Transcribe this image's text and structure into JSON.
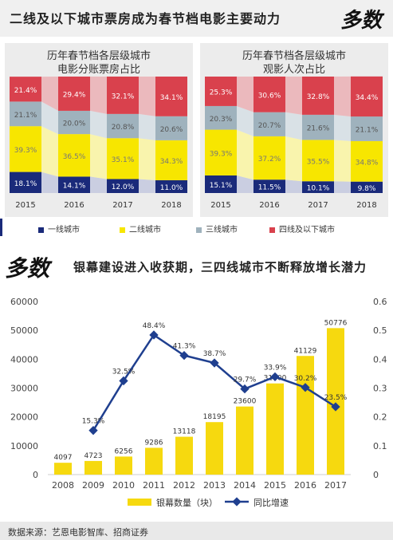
{
  "header": {
    "title": "二线及以下城市票房成为春节档电影主要动力",
    "logo": "多数"
  },
  "colors": {
    "tier1": "#1a2a7a",
    "tier2": "#f7e600",
    "tier3": "#9fb2bd",
    "tier4": "#d9414d",
    "bar": "#f6d90f",
    "line": "#1f3f8f"
  },
  "chart_data": [
    {
      "type": "bar",
      "stacked": true,
      "percent": true,
      "title": "历年春节档各层级城市电影分账票房占比",
      "title_lines": [
        "历年春节档各层级城市",
        "电影分账票房占比"
      ],
      "categories": [
        "2015",
        "2016",
        "2017",
        "2018"
      ],
      "series": [
        {
          "name": "一线城市",
          "values": [
            18.1,
            14.1,
            12.0,
            11.0
          ],
          "labels": [
            "18.1%",
            "14.1%",
            "12.0%",
            "11.0%"
          ]
        },
        {
          "name": "二线城市",
          "values": [
            39.3,
            36.5,
            35.1,
            34.3
          ],
          "labels": [
            "39.3%",
            "36.5%",
            "35.1%",
            "34.3%"
          ]
        },
        {
          "name": "三线城市",
          "values": [
            21.1,
            20.0,
            20.8,
            20.6
          ],
          "labels": [
            "21.1%",
            "20.0%",
            "20.8%",
            "20.6%"
          ]
        },
        {
          "name": "四线及以下城市",
          "values": [
            21.4,
            29.4,
            32.1,
            34.1
          ],
          "labels": [
            "21.4%",
            "29.4%",
            "32.1%",
            "34.1%"
          ]
        }
      ]
    },
    {
      "type": "bar",
      "stacked": true,
      "percent": true,
      "title": "历年春节档各层级城市观影人次占比",
      "title_lines": [
        "历年春节档各层级城市",
        "观影人次占比"
      ],
      "categories": [
        "2015",
        "2016",
        "2017",
        "2018"
      ],
      "series": [
        {
          "name": "一线城市",
          "values": [
            15.1,
            11.5,
            10.1,
            9.8
          ],
          "labels": [
            "15.1%",
            "11.5%",
            "10.1%",
            "9.8%"
          ]
        },
        {
          "name": "二线城市",
          "values": [
            39.3,
            37.2,
            35.5,
            34.8
          ],
          "labels": [
            "39.3%",
            "37.2%",
            "35.5%",
            "34.8%"
          ]
        },
        {
          "name": "三线城市",
          "values": [
            20.3,
            20.7,
            21.6,
            21.1
          ],
          "labels": [
            "20.3%",
            "20.7%",
            "21.6%",
            "21.1%"
          ]
        },
        {
          "name": "四线及以下城市",
          "values": [
            25.3,
            30.6,
            32.8,
            34.4
          ],
          "labels": [
            "25.3%",
            "30.6%",
            "32.8%",
            "34.4%"
          ]
        }
      ]
    },
    {
      "type": "bar",
      "combo": "bar+line",
      "title": "银幕建设进入收获期，三四线城市不断释放增长潜力",
      "categories": [
        "2008",
        "2009",
        "2010",
        "2011",
        "2012",
        "2013",
        "2014",
        "2015",
        "2016",
        "2017"
      ],
      "ylim": [
        0,
        60000
      ],
      "yticks": [
        "0",
        "10000",
        "20000",
        "30000",
        "40000",
        "50000",
        "60000"
      ],
      "y2lim": [
        0,
        0.6
      ],
      "y2ticks": [
        "0",
        "0.1",
        "0.2",
        "0.3",
        "0.4",
        "0.5",
        "0.6"
      ],
      "grid": false,
      "legend_position": "bottom",
      "series": [
        {
          "name": "银幕数量（块）",
          "type": "bar",
          "axis": "left",
          "values": [
            4097,
            4723,
            6256,
            9286,
            13118,
            18195,
            23600,
            31600,
            41129,
            50776
          ],
          "labels": [
            "4097",
            "4723",
            "6256",
            "9286",
            "13118",
            "18195",
            "23600",
            "31600",
            "41129",
            "50776"
          ]
        },
        {
          "name": "同比增速",
          "type": "line",
          "axis": "right",
          "x": [
            "2009",
            "2010",
            "2011",
            "2012",
            "2013",
            "2014",
            "2015",
            "2016",
            "2017"
          ],
          "values": [
            0.153,
            0.325,
            0.484,
            0.413,
            0.387,
            0.297,
            0.339,
            0.302,
            0.235
          ],
          "labels": [
            "15.3%",
            "32.5%",
            "48.4%",
            "41.3%",
            "38.7%",
            "29.7%",
            "33.9%",
            "30.2%",
            "23.5%"
          ]
        }
      ]
    }
  ],
  "legend": {
    "tier1": "一线城市",
    "tier2": "二线城市",
    "tier3": "三线城市",
    "tier4": "四线及以下城市"
  },
  "banner2": {
    "logo": "多数",
    "title": "银幕建设进入收获期，三四线城市不断释放增长潜力"
  },
  "footer": {
    "source": "数据来源：艺恩电影智库、招商证券"
  }
}
